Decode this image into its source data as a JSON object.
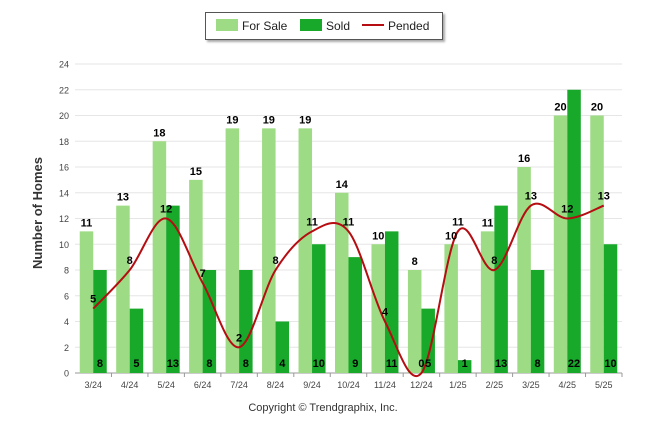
{
  "chart_data": {
    "type": "bar",
    "categories": [
      "3/24",
      "4/24",
      "5/24",
      "6/24",
      "7/24",
      "8/24",
      "9/24",
      "10/24",
      "11/24",
      "12/24",
      "1/25",
      "2/25",
      "3/25",
      "4/25",
      "5/25"
    ],
    "series": [
      {
        "name": "For Sale",
        "type": "bar",
        "color": "#9ddb84",
        "values": [
          11,
          13,
          18,
          15,
          19,
          19,
          19,
          14,
          10,
          8,
          10,
          11,
          16,
          20,
          20
        ]
      },
      {
        "name": "Sold",
        "type": "bar",
        "color": "#18a82a",
        "values": [
          8,
          5,
          13,
          8,
          8,
          4,
          10,
          9,
          11,
          5,
          1,
          13,
          8,
          22,
          10
        ]
      },
      {
        "name": "Pended",
        "type": "line",
        "color": "#b50d12",
        "values": [
          5,
          8,
          12,
          7,
          2,
          8,
          11,
          11,
          4,
          0,
          11,
          8,
          13,
          12,
          13
        ]
      }
    ],
    "ylabel": "Number of Homes",
    "xlabel": "",
    "ylim": [
      0,
      24
    ],
    "yticks": [
      0,
      2,
      4,
      6,
      8,
      10,
      12,
      14,
      16,
      18,
      20,
      22,
      24
    ],
    "grid": true,
    "legend": "top-center"
  },
  "legend": {
    "for_sale": "For Sale",
    "sold": "Sold",
    "pended": "Pended"
  },
  "footer": "Copyright © Trendgraphix, Inc."
}
